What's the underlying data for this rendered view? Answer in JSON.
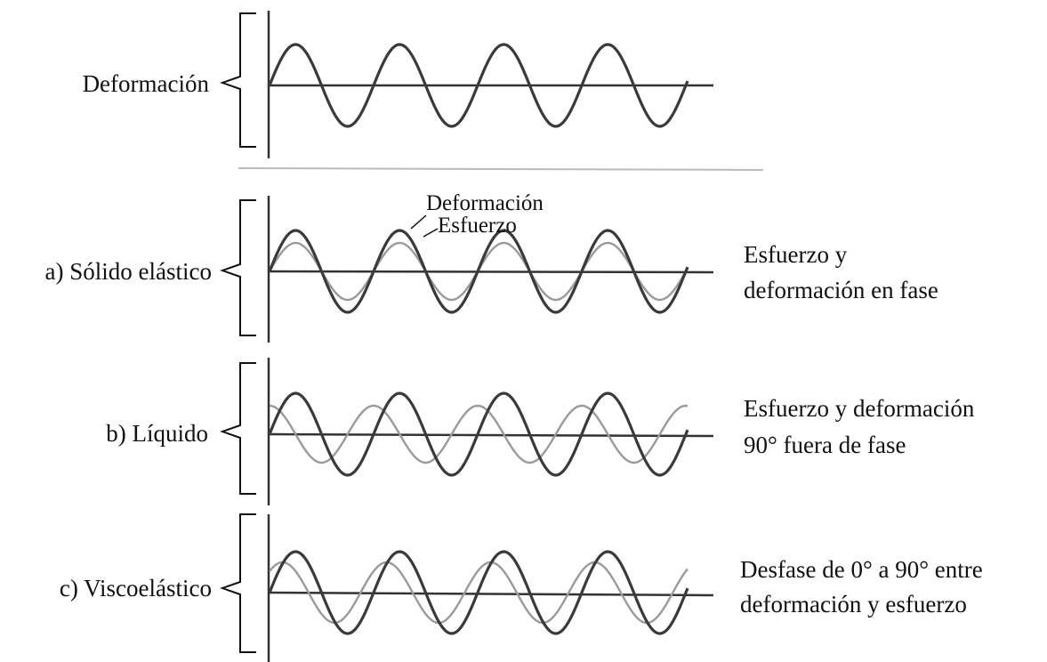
{
  "panels": [
    {
      "label": "Deformación",
      "description": []
    },
    {
      "label": "a) Sólido elástico",
      "description": [
        "Esfuerzo y",
        "deformación en fase"
      ],
      "annotations": {
        "deformacion": "Deformación",
        "esfuerzo": "Esfuerzo"
      }
    },
    {
      "label": "b) Líquido",
      "description": [
        "Esfuerzo y deformación",
        "90° fuera de fase"
      ]
    },
    {
      "label": "c) Viscoelástico",
      "description": [
        "Desfase de 0° a 90° entre",
        "deformación y esfuerzo"
      ]
    }
  ],
  "colors": {
    "deformacion": "#3a3a3a",
    "esfuerzo": "#9a9a9a"
  }
}
